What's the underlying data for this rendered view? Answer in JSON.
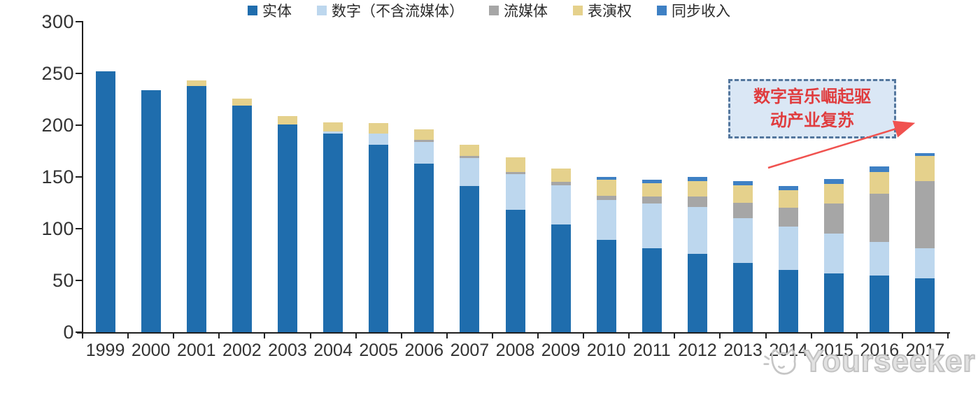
{
  "chart_data": {
    "type": "bar",
    "stacked": true,
    "title": "",
    "xlabel": "",
    "ylabel": "",
    "ylim": [
      0,
      300
    ],
    "yticks": [
      0,
      50,
      100,
      150,
      200,
      250,
      300
    ],
    "grid": false,
    "legend_position": "bottom",
    "categories": [
      "1999",
      "2000",
      "2001",
      "2002",
      "2003",
      "2004",
      "2005",
      "2006",
      "2007",
      "2008",
      "2009",
      "2010",
      "2011",
      "2012",
      "2013",
      "2014",
      "2015",
      "2016",
      "2017"
    ],
    "series": [
      {
        "name": "实体",
        "color": "#1f6dad",
        "values": [
          252,
          234,
          238,
          219,
          201,
          192,
          181,
          163,
          141,
          118,
          104,
          89,
          81,
          76,
          67,
          60,
          57,
          55,
          52
        ]
      },
      {
        "name": "数字（不含流媒体）",
        "color": "#bdd7ee",
        "values": [
          0,
          0,
          0,
          0,
          0,
          2,
          11,
          21,
          27,
          35,
          38,
          39,
          43,
          45,
          43,
          42,
          38,
          32,
          29
        ]
      },
      {
        "name": "流媒体",
        "color": "#a6a6a6",
        "values": [
          0,
          0,
          0,
          0,
          0,
          0,
          0,
          2,
          2,
          2,
          3,
          4,
          7,
          10,
          15,
          18,
          29,
          47,
          65
        ]
      },
      {
        "name": "表演权",
        "color": "#e5d18c",
        "values": [
          0,
          0,
          5,
          7,
          8,
          9,
          10,
          10,
          11,
          14,
          13,
          15,
          13,
          15,
          17,
          17,
          19,
          21,
          24
        ]
      },
      {
        "name": "同步收入",
        "color": "#3e80c4",
        "values": [
          0,
          0,
          0,
          0,
          0,
          0,
          0,
          0,
          0,
          0,
          0,
          3,
          3,
          4,
          4,
          4,
          5,
          5,
          3
        ]
      }
    ]
  },
  "annotation": {
    "line1": "数字音乐崛起驱",
    "line2": "动产业复苏",
    "text_color": "#e03c3e",
    "box_fill": "#dae7f5",
    "box_border": "#54779e",
    "arrow_color": "#f0524f"
  },
  "watermark": {
    "text": "Yourseeker"
  }
}
